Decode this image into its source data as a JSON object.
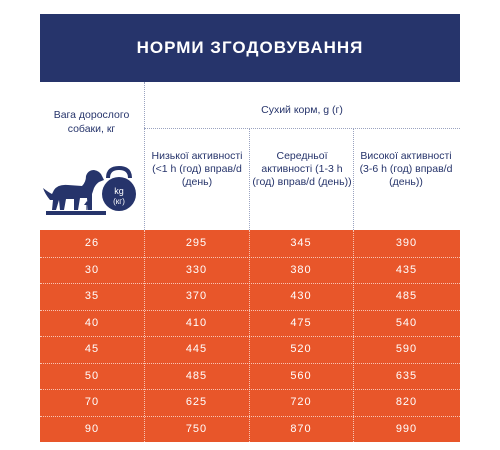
{
  "title": "НОРМИ ЗГОДОВУВАННЯ",
  "weight_header": "Вага дорослого собаки, кг",
  "dry_food_header": "Сухий корм, g (г)",
  "activity_headers": [
    "Низької активності (<1 h (год) вправ/d (день)",
    "Середньої активності (1-3 h (год) вправ/d (день))",
    "Високої активності (3-6 h (год) вправ/d (день))"
  ],
  "kettlebell": {
    "line1": "kg",
    "line2": "(кг)"
  },
  "rows": [
    {
      "weight": "26",
      "low": "295",
      "medium": "345",
      "high": "390"
    },
    {
      "weight": "30",
      "low": "330",
      "medium": "380",
      "high": "435"
    },
    {
      "weight": "35",
      "low": "370",
      "medium": "430",
      "high": "485"
    },
    {
      "weight": "40",
      "low": "410",
      "medium": "475",
      "high": "540"
    },
    {
      "weight": "45",
      "low": "445",
      "medium": "520",
      "high": "590"
    },
    {
      "weight": "50",
      "low": "485",
      "medium": "560",
      "high": "635"
    },
    {
      "weight": "70",
      "low": "625",
      "medium": "720",
      "high": "820"
    },
    {
      "weight": "90",
      "low": "750",
      "medium": "870",
      "high": "990"
    }
  ],
  "colors": {
    "navy": "#26346b",
    "orange": "#e8562a",
    "white": "#ffffff"
  },
  "icons": [
    "dog-icon",
    "kettlebell-icon",
    "scale-icon"
  ]
}
